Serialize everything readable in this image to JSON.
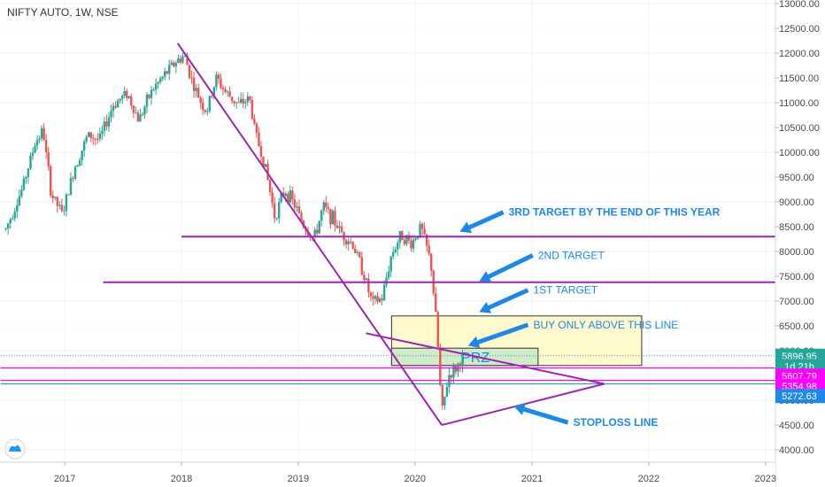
{
  "chart_title": "NIFTY AUTO, 1W, NSE",
  "colors": {
    "up": "#26a69a",
    "down": "#ef5350",
    "purple": "#9c27b0",
    "magenta": "#ff00ff",
    "blue": "#1e88e5",
    "zone_fill": "#fff9c4",
    "prz_fill": "#c8e6c9"
  },
  "chart_data": {
    "type": "candlestick",
    "title": "NIFTY AUTO, 1W, NSE",
    "x_axis": {
      "type": "date",
      "ticks": [
        "2017",
        "2018",
        "2019",
        "2020",
        "2021",
        "2022",
        "2023"
      ]
    },
    "y_axis": {
      "range": [
        3800,
        13050
      ],
      "position": "right",
      "ticks": [
        "4000.00",
        "4500.00",
        "5000.00",
        "5500.00",
        "6000.00",
        "6500.00",
        "7000.00",
        "7500.00",
        "8000.00",
        "8500.00",
        "9000.00",
        "9500.00",
        "10000.00",
        "10500.00",
        "11000.00",
        "11500.00",
        "12000.00",
        "12500.00",
        "13000.00"
      ]
    },
    "price_path": [
      [
        "2016-07-01",
        8450
      ],
      [
        "2016-08-20",
        9250
      ],
      [
        "2016-10-01",
        10200
      ],
      [
        "2016-10-25",
        10450
      ],
      [
        "2016-11-20",
        9150
      ],
      [
        "2016-12-25",
        8750
      ],
      [
        "2017-02-01",
        9700
      ],
      [
        "2017-03-15",
        10350
      ],
      [
        "2017-04-20",
        10250
      ],
      [
        "2017-06-01",
        10950
      ],
      [
        "2017-07-15",
        11200
      ],
      [
        "2017-08-20",
        10650
      ],
      [
        "2017-10-01",
        11250
      ],
      [
        "2017-11-15",
        11600
      ],
      [
        "2017-12-10",
        11800
      ],
      [
        "2018-01-10",
        11950
      ],
      [
        "2018-02-10",
        11300
      ],
      [
        "2018-03-20",
        10800
      ],
      [
        "2018-04-20",
        11500
      ],
      [
        "2018-05-20",
        11200
      ],
      [
        "2018-06-30",
        10950
      ],
      [
        "2018-08-01",
        11100
      ],
      [
        "2018-08-20",
        10400
      ],
      [
        "2018-09-20",
        9700
      ],
      [
        "2018-10-20",
        8700
      ],
      [
        "2018-11-20",
        9250
      ],
      [
        "2018-12-20",
        8950
      ],
      [
        "2019-01-20",
        8500
      ],
      [
        "2019-02-20",
        8250
      ],
      [
        "2019-03-20",
        8900
      ],
      [
        "2019-04-20",
        8650
      ],
      [
        "2019-05-20",
        8350
      ],
      [
        "2019-06-20",
        8150
      ],
      [
        "2019-07-20",
        7650
      ],
      [
        "2019-08-20",
        6950
      ],
      [
        "2019-09-20",
        7050
      ],
      [
        "2019-10-20",
        7950
      ],
      [
        "2019-11-20",
        8350
      ],
      [
        "2019-12-20",
        8150
      ],
      [
        "2020-01-20",
        8500
      ],
      [
        "2020-02-20",
        7750
      ],
      [
        "2020-03-10",
        6400
      ],
      [
        "2020-03-25",
        4700
      ],
      [
        "2020-04-15",
        5500
      ],
      [
        "2020-05-10",
        5650
      ],
      [
        "2020-06-01",
        5897
      ]
    ],
    "horizontal_lines": [
      {
        "y": 8300,
        "x_from": "2018-01-01",
        "x_to": "2023-02-20",
        "color": "purple"
      },
      {
        "y": 7380,
        "x_from": "2017-05-01",
        "x_to": "2023-02-20",
        "color": "purple"
      },
      {
        "y": 5650,
        "x_from": "2016-06-15",
        "x_to": "2023-02-20",
        "color": "magenta"
      },
      {
        "y": 5400,
        "x_from": "2016-06-15",
        "x_to": "2023-02-20",
        "color": "magenta"
      },
      {
        "y": 5330,
        "x_from": "2016-06-15",
        "x_to": "2023-02-20",
        "color": "teal"
      },
      {
        "y": 5897,
        "x_from": "2016-06-15",
        "x_to": "2023-02-20",
        "color": "dotted-teal"
      }
    ],
    "trend_lines": [
      {
        "x1": "2017-12-20",
        "y1": 12200,
        "x2": "2020-03-25",
        "y2": 4500
      },
      {
        "x1": "2019-08-01",
        "y1": 6350,
        "x2": "2021-08-15",
        "y2": 5330
      },
      {
        "x1": "2020-03-25",
        "y1": 4500,
        "x2": "2021-08-15",
        "y2": 5330
      }
    ],
    "boxes": [
      {
        "label": "",
        "x1": "2019-10-20",
        "x2": "2021-12-10",
        "y_low": 5700,
        "y_high": 6700,
        "fill": "zone_fill"
      },
      {
        "label": "PRZ",
        "x1": "2019-10-20",
        "x2": "2021-01-20",
        "y_low": 5700,
        "y_high": 6050,
        "fill": "prz_fill"
      }
    ],
    "annotations": [
      {
        "text": "3RD TARGET BY THE END OF THIS YEAR",
        "x": "2020-10-20",
        "y": 8720,
        "bold": true,
        "arrow_to": [
          "2020-05-20",
          8400
        ]
      },
      {
        "text": "2ND TARGET",
        "x": "2021-01-20",
        "y": 7850,
        "bold": false,
        "arrow_to": [
          "2020-07-20",
          7400
        ]
      },
      {
        "text": "1ST TARGET",
        "x": "2021-01-05",
        "y": 7150,
        "bold": false,
        "arrow_to": [
          "2020-07-20",
          6780
        ]
      },
      {
        "text": "BUY ONLY ABOVE THIS LINE",
        "x": "2021-01-05",
        "y": 6450,
        "bold": false,
        "arrow_to": [
          "2020-06-15",
          6100
        ]
      },
      {
        "text": "STOPLOSS LINE",
        "x": "2021-05-10",
        "y": 4480,
        "bold": true,
        "arrow_to": [
          "2020-11-05",
          4880
        ]
      }
    ]
  },
  "price_labels": [
    {
      "text": "5896.95",
      "y": 5897,
      "bg": "#26a69a"
    },
    {
      "text": "1d 21h",
      "y": 5690,
      "bg": "#26a69a"
    },
    {
      "text": "5607.79",
      "y": 5495,
      "bg": "#ff00ff"
    },
    {
      "text": "5354.98",
      "y": 5290,
      "bg": "#ff00ff"
    },
    {
      "text": "5272.63",
      "y": 5085,
      "bg": "#1e88e5"
    }
  ],
  "logo": {
    "name": "tradingview-logo"
  }
}
